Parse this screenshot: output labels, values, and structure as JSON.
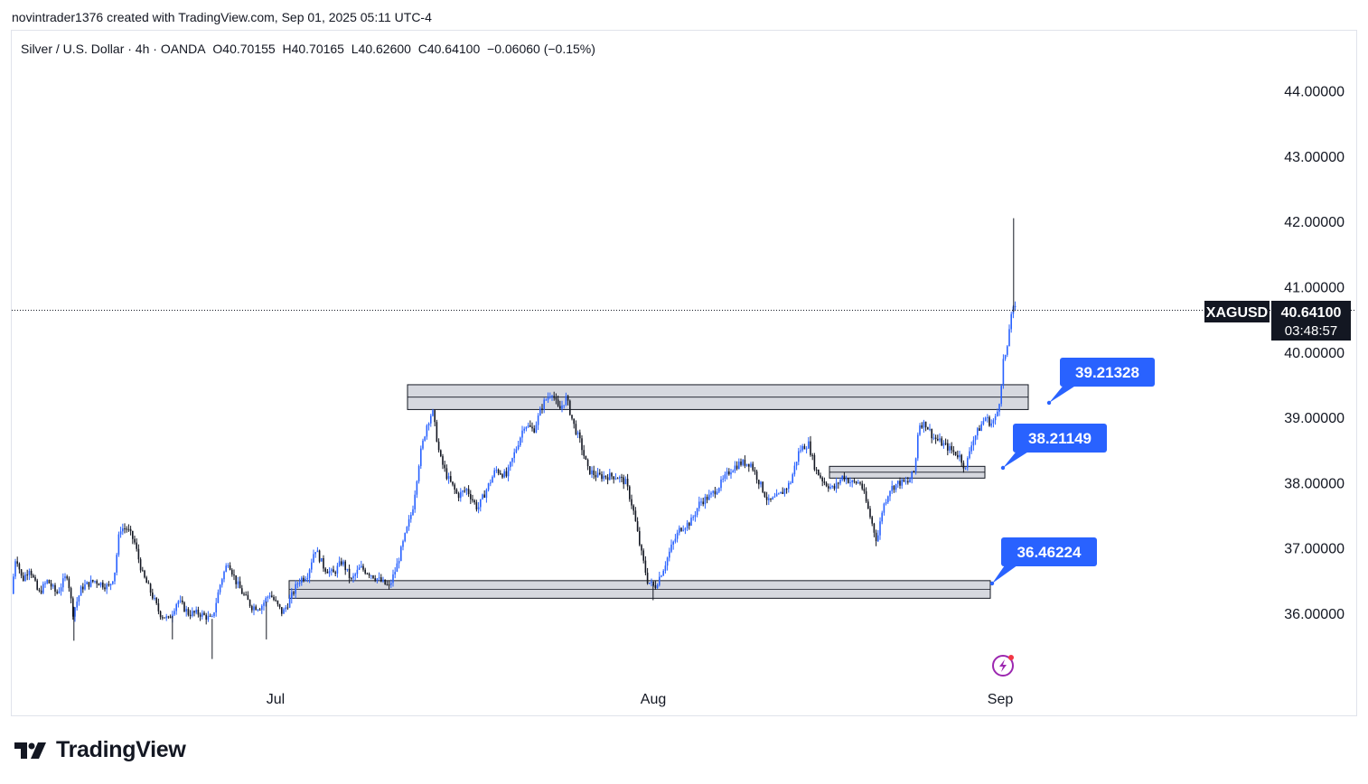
{
  "header": {
    "caption": "novintrader1376 created with TradingView.com, Sep 01, 2025 05:11 UTC-4"
  },
  "legend": {
    "symbol_text": "Silver / U.S. Dollar · 4h · OANDA",
    "open": "O40.70155",
    "high": "H40.70165",
    "low": "L40.62600",
    "close": "C40.64100",
    "change": "−0.06060 (−0.15%)"
  },
  "price_tag": {
    "ticker": "XAGUSD",
    "price": "40.64100",
    "countdown": "03:48:57"
  },
  "callouts": [
    {
      "label": "39.21328",
      "value": 39.21328
    },
    {
      "label": "38.21149",
      "value": 38.21149
    },
    {
      "label": "36.46224",
      "value": 36.46224
    }
  ],
  "footer": {
    "brand": "TradingView"
  },
  "colors": {
    "up": "#2962ff",
    "down": "#131722",
    "zone_fill": "#d1d4dc",
    "zone_border": "#131722",
    "callout": "#2962ff",
    "price_tag_bg": "#131722"
  },
  "chart_data": {
    "type": "candlestick",
    "ylim": [
      35.0,
      44.8
    ],
    "yticks": [
      "44.00000",
      "43.00000",
      "42.00000",
      "41.00000",
      "40.00000",
      "39.00000",
      "38.00000",
      "37.00000",
      "36.00000"
    ],
    "ytick_values": [
      44,
      43,
      42,
      41,
      40,
      39,
      38,
      37,
      36
    ],
    "x_ticks": [
      "Jul",
      "Aug",
      "Sep"
    ],
    "last_price": 40.641,
    "zones": [
      {
        "name": "resistance-zone",
        "from": "Jul 08",
        "to": "Sep 02",
        "low": 39.12,
        "high": 39.5
      },
      {
        "name": "mid-support-zone",
        "from": "Aug 19",
        "to": "Aug 31",
        "low": 38.07,
        "high": 38.25
      },
      {
        "name": "support-zone",
        "from": "Jun 30",
        "to": "Sep 01",
        "low": 36.23,
        "high": 36.5
      }
    ],
    "path_points": [
      [
        0,
        36.3
      ],
      [
        5,
        36.9
      ],
      [
        12,
        36.5
      ],
      [
        20,
        36.7
      ],
      [
        30,
        36.3
      ],
      [
        40,
        36.5
      ],
      [
        50,
        36.3
      ],
      [
        62,
        36.6
      ],
      [
        68,
        36.0
      ],
      [
        78,
        36.4
      ],
      [
        92,
        36.5
      ],
      [
        108,
        36.4
      ],
      [
        114,
        36.6
      ],
      [
        120,
        37.3
      ],
      [
        128,
        37.3
      ],
      [
        136,
        37.1
      ],
      [
        145,
        36.6
      ],
      [
        155,
        36.3
      ],
      [
        164,
        36.0
      ],
      [
        174,
        35.9
      ],
      [
        184,
        36.2
      ],
      [
        196,
        36.0
      ],
      [
        208,
        36.0
      ],
      [
        222,
        35.9
      ],
      [
        232,
        36.5
      ],
      [
        240,
        36.8
      ],
      [
        248,
        36.5
      ],
      [
        256,
        36.3
      ],
      [
        266,
        36.1
      ],
      [
        276,
        36.1
      ],
      [
        286,
        36.3
      ],
      [
        300,
        36.0
      ],
      [
        308,
        36.2
      ],
      [
        318,
        36.5
      ],
      [
        328,
        36.6
      ],
      [
        336,
        37.0
      ],
      [
        346,
        36.7
      ],
      [
        356,
        36.6
      ],
      [
        366,
        36.8
      ],
      [
        376,
        36.5
      ],
      [
        386,
        36.7
      ],
      [
        398,
        36.6
      ],
      [
        408,
        36.5
      ],
      [
        418,
        36.4
      ],
      [
        426,
        36.7
      ],
      [
        436,
        37.2
      ],
      [
        444,
        37.6
      ],
      [
        452,
        38.4
      ],
      [
        460,
        38.9
      ],
      [
        466,
        39.1
      ],
      [
        474,
        38.4
      ],
      [
        482,
        38.1
      ],
      [
        494,
        37.8
      ],
      [
        504,
        37.9
      ],
      [
        516,
        37.6
      ],
      [
        526,
        37.9
      ],
      [
        536,
        38.2
      ],
      [
        548,
        38.1
      ],
      [
        558,
        38.5
      ],
      [
        568,
        38.9
      ],
      [
        578,
        38.8
      ],
      [
        588,
        39.2
      ],
      [
        598,
        39.4
      ],
      [
        606,
        39.1
      ],
      [
        614,
        39.3
      ],
      [
        622,
        38.9
      ],
      [
        630,
        38.6
      ],
      [
        638,
        38.2
      ],
      [
        648,
        38.1
      ],
      [
        660,
        38.1
      ],
      [
        670,
        38.1
      ],
      [
        680,
        38.0
      ],
      [
        688,
        37.6
      ],
      [
        696,
        37.0
      ],
      [
        704,
        36.5
      ],
      [
        712,
        36.4
      ],
      [
        722,
        36.7
      ],
      [
        730,
        37.0
      ],
      [
        740,
        37.3
      ],
      [
        752,
        37.4
      ],
      [
        762,
        37.7
      ],
      [
        774,
        37.8
      ],
      [
        786,
        38.0
      ],
      [
        796,
        38.2
      ],
      [
        806,
        38.3
      ],
      [
        818,
        38.3
      ],
      [
        828,
        38.0
      ],
      [
        838,
        37.7
      ],
      [
        850,
        37.8
      ],
      [
        862,
        38.0
      ],
      [
        872,
        38.5
      ],
      [
        882,
        38.6
      ],
      [
        890,
        38.2
      ],
      [
        900,
        38.0
      ],
      [
        910,
        37.9
      ],
      [
        920,
        38.1
      ],
      [
        930,
        38.0
      ],
      [
        940,
        38.0
      ],
      [
        950,
        37.5
      ],
      [
        958,
        37.1
      ],
      [
        964,
        37.6
      ],
      [
        972,
        37.9
      ],
      [
        982,
        38.0
      ],
      [
        992,
        38.0
      ],
      [
        1000,
        38.2
      ],
      [
        1004,
        38.9
      ],
      [
        1012,
        38.9
      ],
      [
        1020,
        38.7
      ],
      [
        1030,
        38.6
      ],
      [
        1040,
        38.5
      ],
      [
        1050,
        38.4
      ],
      [
        1056,
        38.2
      ],
      [
        1062,
        38.6
      ],
      [
        1070,
        38.8
      ],
      [
        1078,
        39.0
      ],
      [
        1084,
        38.9
      ],
      [
        1090,
        39.0
      ],
      [
        1094,
        39.3
      ],
      [
        1098,
        39.9
      ],
      [
        1102,
        40.0
      ],
      [
        1106,
        40.6
      ],
      [
        1110,
        40.66
      ]
    ],
    "spikes": [
      {
        "t": 67,
        "low": 35.58
      },
      {
        "t": 176,
        "low": 35.6
      },
      {
        "t": 220,
        "low": 35.3
      },
      {
        "t": 280,
        "low": 35.6
      },
      {
        "t": 708,
        "low": 36.2
      },
      {
        "t": 1107,
        "high": 42.05
      }
    ]
  }
}
